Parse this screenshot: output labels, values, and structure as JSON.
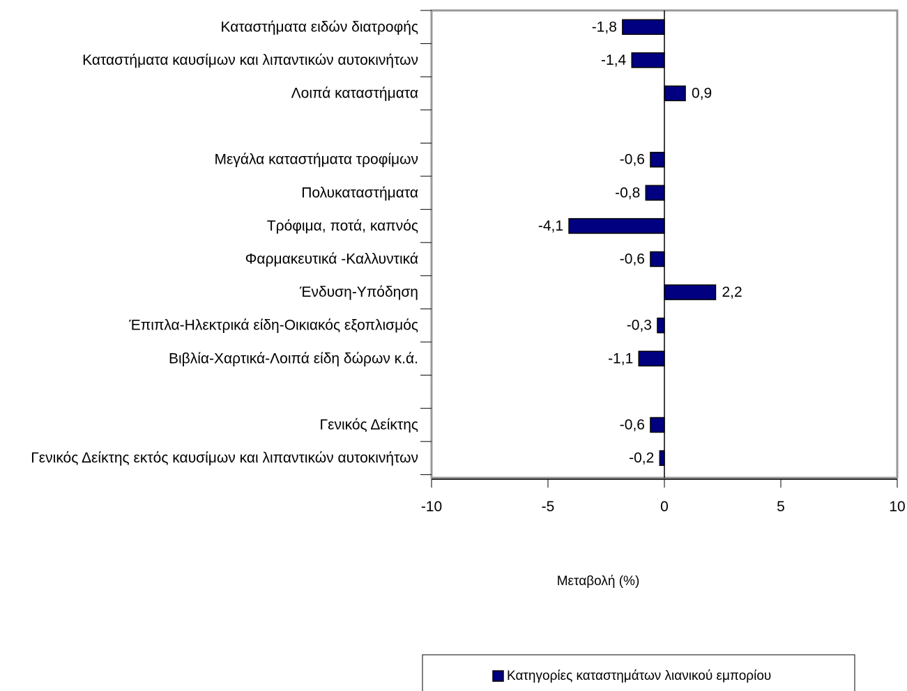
{
  "chart_data": {
    "type": "bar",
    "orientation": "horizontal",
    "categories": [
      "Καταστήματα ειδών διατροφής",
      "Καταστήματα καυσίμων και λιπαντικών αυτοκινήτων",
      "Λοιπά καταστήματα",
      "",
      "Μεγάλα καταστήματα τροφίμων",
      "Πολυκαταστήματα",
      "Τρόφιμα, ποτά, καπνός",
      "Φαρμακευτικά -Καλλυντικά",
      "Ένδυση-Υπόδηση",
      "Έπιπλα-Ηλεκτρικά είδη-Οικιακός εξοπλισμός",
      "Βιβλία-Χαρτικά-Λοιπά είδη δώρων κ.ά.",
      "",
      "Γενικός Δείκτης",
      "Γενικός Δείκτης εκτός καυσίμων και λιπαντικών αυτοκινήτων"
    ],
    "values": [
      -1.8,
      -1.4,
      0.9,
      null,
      -0.6,
      -0.8,
      -4.1,
      -0.6,
      2.2,
      -0.3,
      -1.1,
      null,
      -0.6,
      -0.2
    ],
    "value_labels": [
      "-1,8",
      "-1,4",
      "0,9",
      "",
      "-0,6",
      "-0,8",
      "-4,1",
      "-0,6",
      "2,2",
      "-0,3",
      "-1,1",
      "",
      "-0,6",
      "-0,2"
    ],
    "xlim": [
      -10,
      10
    ],
    "xticks": [
      -10,
      -5,
      0,
      5,
      10
    ],
    "xtick_labels": [
      "-10",
      "-5",
      "0",
      "5",
      "10"
    ],
    "xlabel": "Μεταβολή (%)",
    "ylabel": "",
    "title": "",
    "grid": false,
    "legend": {
      "position": "bottom",
      "entries": [
        "Κατηγορίες καταστημάτων λιανικού εμπορίου"
      ]
    },
    "colors": {
      "bar_fill": "#000080",
      "bar_stroke": "#000000",
      "frame": "#999999"
    }
  }
}
